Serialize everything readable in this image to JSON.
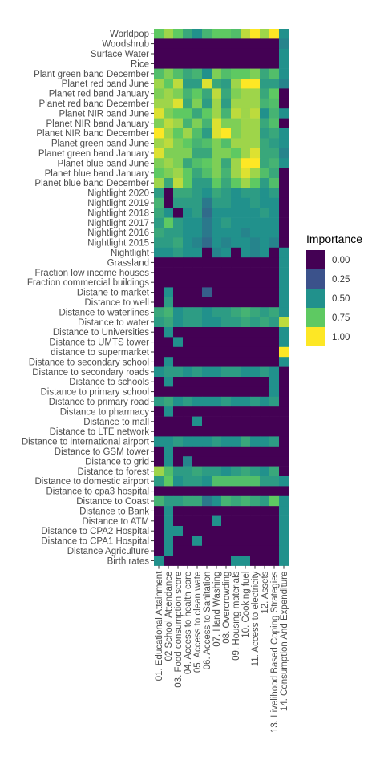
{
  "chart_data": {
    "type": "heatmap",
    "title": "",
    "xlabel": "",
    "ylabel": "",
    "x": [
      "01. Educational Attainment",
      "02 School Attendance",
      "03. Food consumption score",
      "04. Access to health care",
      "05. Access to clean wate",
      "06. Access to Sanitation",
      "07. Hand Washing",
      "08. Overcrowding",
      "09. Housing materials",
      "10. Cooking fuel",
      "11. Access to electricity",
      "12. Assets",
      "13. Livelihood Based Coping Strategies",
      "14. Consumption And Expenditure"
    ],
    "y": [
      "Worldpop",
      "Woodshrub",
      "Surface Water",
      "Rice",
      "Plant green band December",
      "Planet red band June",
      "Planet red band January",
      "Planet red band December",
      "Planet NIR band June",
      "Planet NIR band January",
      "Planet NIR band December",
      "Planet green band June",
      "Planet green band January",
      "Planet blue band June",
      "Planet blue band January",
      "Planet blue band December",
      "Nightlight 2020",
      "Nightlight 2019",
      "Nightlight 2018",
      "Nightlight 2017",
      "Nightlight 2016",
      "Nightlight 2015",
      "Nightlight",
      "Grassland",
      "Fraction low income houses",
      "Fraction commercial buildings",
      "Distane to market",
      "Distance to well",
      "Distance to waterlines",
      "Distance to water",
      "Distance to Universities",
      "Distance to UMTS tower",
      "distance to supermarket",
      "Distance to secondary school",
      "Distance to secondary roads",
      "Distance to schools",
      "Distance to primary school",
      "Distance to primary road",
      "Distance to pharmacy",
      "Distance to mall",
      "Distance to LTE network",
      "Distance to international airport",
      "Distance to GSM tower",
      "Distance to grid",
      "Distance to forest",
      "Distance to domestic airport",
      "Distance to cpa3 hospital",
      "Distance to Coast",
      "Distance to Bank",
      "Distance to ATM",
      "Distance to  CPA2 Hospital",
      "Distance to  CPA1 Hospital",
      "Distance Agriculture",
      "Birth rates"
    ],
    "values": [
      [
        0.75,
        0.85,
        0.75,
        0.6,
        0.5,
        0.65,
        0.75,
        0.75,
        0.7,
        0.9,
        1.0,
        0.85,
        1.0,
        0.5
      ],
      [
        0,
        0,
        0,
        0,
        0,
        0,
        0,
        0,
        0,
        0,
        0,
        0,
        0,
        0.45
      ],
      [
        0,
        0,
        0,
        0,
        0,
        0,
        0,
        0,
        0,
        0,
        0,
        0,
        0,
        0.5
      ],
      [
        0,
        0,
        0,
        0,
        0,
        0,
        0,
        0,
        0,
        0,
        0,
        0,
        0,
        0.5
      ],
      [
        0.7,
        0.8,
        0.7,
        0.6,
        0.65,
        0.5,
        0.8,
        0.7,
        0.75,
        0.75,
        0.8,
        0.6,
        0.7,
        0.5
      ],
      [
        0.85,
        0.75,
        0.9,
        0.55,
        0.55,
        0.95,
        0.6,
        0.55,
        0.85,
        1.0,
        1.0,
        0.55,
        0.55,
        0.45
      ],
      [
        0.8,
        0.85,
        0.8,
        0.65,
        0.75,
        0.6,
        0.9,
        0.6,
        0.8,
        0.85,
        0.85,
        0.6,
        0.75,
        0
      ],
      [
        0.85,
        0.85,
        0.95,
        0.6,
        0.8,
        0.55,
        0.85,
        0.55,
        0.85,
        0.85,
        0.85,
        0.65,
        0.7,
        0
      ],
      [
        0.95,
        0.8,
        0.75,
        0.75,
        0.6,
        0.75,
        0.85,
        0.65,
        0.9,
        0.85,
        0.9,
        0.5,
        0.65,
        0.5
      ],
      [
        0.8,
        0.9,
        0.85,
        0.65,
        0.8,
        0.65,
        0.95,
        0.8,
        0.8,
        0.85,
        0.85,
        0.6,
        0.7,
        0
      ],
      [
        1.0,
        0.85,
        0.75,
        0.85,
        0.7,
        0.55,
        0.95,
        1.0,
        0.8,
        0.85,
        0.85,
        0.55,
        0.6,
        0.5
      ],
      [
        0.85,
        0.9,
        0.8,
        0.75,
        0.65,
        0.7,
        0.8,
        0.7,
        0.85,
        0.85,
        0.85,
        0.6,
        0.55,
        0.5
      ],
      [
        0.95,
        0.8,
        0.8,
        0.8,
        0.6,
        0.6,
        0.8,
        0.8,
        0.75,
        0.85,
        0.95,
        0.6,
        0.6,
        0.45
      ],
      [
        0.8,
        0.85,
        0.8,
        0.6,
        0.7,
        0.75,
        0.8,
        0.6,
        0.85,
        1.0,
        1.0,
        0.6,
        0.65,
        0.5
      ],
      [
        0.75,
        0.8,
        0.85,
        0.75,
        0.6,
        0.7,
        0.8,
        0.65,
        0.85,
        0.95,
        0.85,
        0.7,
        0.6,
        0
      ],
      [
        0.85,
        0.6,
        0.9,
        0.75,
        0.55,
        0.55,
        0.75,
        0.6,
        0.75,
        0.85,
        0.75,
        0.55,
        0.7,
        0
      ],
      [
        0.55,
        0,
        0.6,
        0.6,
        0.55,
        0.5,
        0.6,
        0.55,
        0.5,
        0.55,
        0.55,
        0.5,
        0.55,
        0
      ],
      [
        0.65,
        0,
        0.55,
        0.55,
        0.55,
        0.4,
        0.55,
        0.55,
        0.5,
        0.5,
        0.55,
        0.5,
        0.5,
        0
      ],
      [
        0.6,
        0.5,
        0,
        0.5,
        0.55,
        0.35,
        0.5,
        0.5,
        0.5,
        0.5,
        0.5,
        0.55,
        0.5,
        0
      ],
      [
        0.55,
        0.75,
        0.55,
        0.5,
        0.5,
        0.4,
        0.5,
        0.55,
        0.5,
        0.5,
        0.5,
        0.5,
        0.5,
        0
      ],
      [
        0.6,
        0.55,
        0.55,
        0.5,
        0.5,
        0.4,
        0.5,
        0.5,
        0.5,
        0.45,
        0.5,
        0.5,
        0.5,
        0
      ],
      [
        0.55,
        0.55,
        0.6,
        0.5,
        0.45,
        0.35,
        0.5,
        0.45,
        0.5,
        0.5,
        0.45,
        0.5,
        0.45,
        0
      ],
      [
        0.5,
        0.5,
        0.55,
        0.5,
        0.5,
        0,
        0.45,
        0.5,
        0,
        0.5,
        0.45,
        0.5,
        0,
        0.5
      ],
      [
        0,
        0,
        0,
        0,
        0,
        0,
        0,
        0,
        0,
        0,
        0,
        0,
        0,
        0.5
      ],
      [
        0,
        0,
        0,
        0,
        0,
        0,
        0,
        0,
        0,
        0,
        0,
        0,
        0,
        0.5
      ],
      [
        0,
        0,
        0,
        0,
        0,
        0,
        0,
        0,
        0,
        0,
        0,
        0,
        0,
        0.5
      ],
      [
        0,
        0.5,
        0,
        0,
        0,
        0.3,
        0,
        0,
        0,
        0,
        0,
        0,
        0,
        0.5
      ],
      [
        0,
        0.55,
        0,
        0,
        0,
        0,
        0,
        0,
        0,
        0,
        0,
        0,
        0,
        0.5
      ],
      [
        0.6,
        0.65,
        0.5,
        0.55,
        0.55,
        0.5,
        0.55,
        0.55,
        0.6,
        0.65,
        0.6,
        0.55,
        0.6,
        0.5
      ],
      [
        0.55,
        0.6,
        0.5,
        0.55,
        0.55,
        0.5,
        0.5,
        0.55,
        0.55,
        0.6,
        0.55,
        0.6,
        0.55,
        0.9
      ],
      [
        0,
        0.5,
        0,
        0,
        0,
        0,
        0,
        0,
        0,
        0,
        0,
        0,
        0,
        0.5
      ],
      [
        0,
        0,
        0.5,
        0,
        0,
        0,
        0,
        0,
        0,
        0,
        0,
        0,
        0,
        0.5
      ],
      [
        0,
        0,
        0,
        0,
        0,
        0,
        0,
        0,
        0,
        0,
        0,
        0,
        0,
        1.0
      ],
      [
        0,
        0.5,
        0,
        0,
        0,
        0,
        0,
        0,
        0,
        0,
        0,
        0,
        0,
        0.5
      ],
      [
        0.5,
        0.55,
        0.55,
        0.5,
        0.55,
        0.5,
        0.5,
        0.55,
        0.55,
        0.5,
        0.5,
        0.55,
        0.5,
        0
      ],
      [
        0,
        0.5,
        0,
        0,
        0,
        0,
        0,
        0,
        0,
        0,
        0,
        0,
        0.5,
        0
      ],
      [
        0,
        0,
        0,
        0,
        0,
        0,
        0,
        0,
        0,
        0,
        0,
        0,
        0.5,
        0
      ],
      [
        0.55,
        0.6,
        0.5,
        0.55,
        0.5,
        0.5,
        0.5,
        0.55,
        0.5,
        0.5,
        0.55,
        0.5,
        0.55,
        0
      ],
      [
        0,
        0.5,
        0,
        0,
        0,
        0,
        0,
        0,
        0,
        0,
        0,
        0,
        0,
        0
      ],
      [
        0,
        0,
        0,
        0,
        0.5,
        0,
        0,
        0,
        0,
        0,
        0,
        0,
        0,
        0
      ],
      [
        0,
        0,
        0,
        0,
        0,
        0,
        0,
        0,
        0,
        0,
        0,
        0,
        0,
        0
      ],
      [
        0.5,
        0.5,
        0.55,
        0.5,
        0.5,
        0.5,
        0.55,
        0.5,
        0.5,
        0.6,
        0.5,
        0.5,
        0.55,
        0
      ],
      [
        0,
        0.5,
        0,
        0,
        0,
        0,
        0,
        0,
        0,
        0,
        0,
        0,
        0,
        0
      ],
      [
        0,
        0.5,
        0,
        0.45,
        0,
        0,
        0,
        0,
        0,
        0,
        0,
        0,
        0,
        0
      ],
      [
        0.85,
        0.7,
        0.55,
        0.55,
        0.6,
        0.55,
        0.55,
        0.5,
        0.55,
        0.6,
        0.55,
        0.5,
        0.6,
        0
      ],
      [
        0.55,
        0.75,
        0.5,
        0.55,
        0.55,
        0.5,
        0.7,
        0.7,
        0.7,
        0.7,
        0.7,
        0.55,
        0.55,
        0.5
      ],
      [
        0,
        0,
        0,
        0,
        0,
        0,
        0,
        0,
        0,
        0,
        0,
        0,
        0,
        0
      ],
      [
        0.65,
        0.55,
        0.55,
        0.6,
        0.6,
        0.4,
        0.5,
        0.65,
        0.6,
        0.65,
        0.6,
        0.55,
        0.75,
        0.5
      ],
      [
        0,
        0.5,
        0,
        0,
        0,
        0,
        0,
        0,
        0,
        0,
        0,
        0,
        0,
        0.5
      ],
      [
        0,
        0.5,
        0,
        0,
        0,
        0,
        0.5,
        0,
        0,
        0,
        0,
        0,
        0,
        0.5
      ],
      [
        0,
        0.5,
        0.5,
        0,
        0,
        0,
        0,
        0,
        0,
        0,
        0,
        0,
        0,
        0.5
      ],
      [
        0,
        0.5,
        0,
        0,
        0.5,
        0,
        0,
        0,
        0,
        0,
        0,
        0,
        0,
        0.5
      ],
      [
        0,
        0.5,
        0,
        0,
        0,
        0,
        0,
        0,
        0,
        0,
        0,
        0,
        0,
        0.5
      ],
      [
        0.5,
        0,
        0,
        0,
        0,
        0,
        0,
        0,
        0.5,
        0.5,
        0,
        0,
        0,
        0.5
      ]
    ],
    "legend": {
      "title": "Importance",
      "placement": "right",
      "labels": [
        "0.00",
        "0.25",
        "0.50",
        "0.75",
        "1.00"
      ],
      "breaks": [
        0,
        0.25,
        0.5,
        0.75,
        1.0
      ]
    },
    "color_scale": [
      "#440154",
      "#3b528b",
      "#21918c",
      "#5ec962",
      "#fde725"
    ],
    "range": [
      0,
      1
    ],
    "grid": false
  }
}
